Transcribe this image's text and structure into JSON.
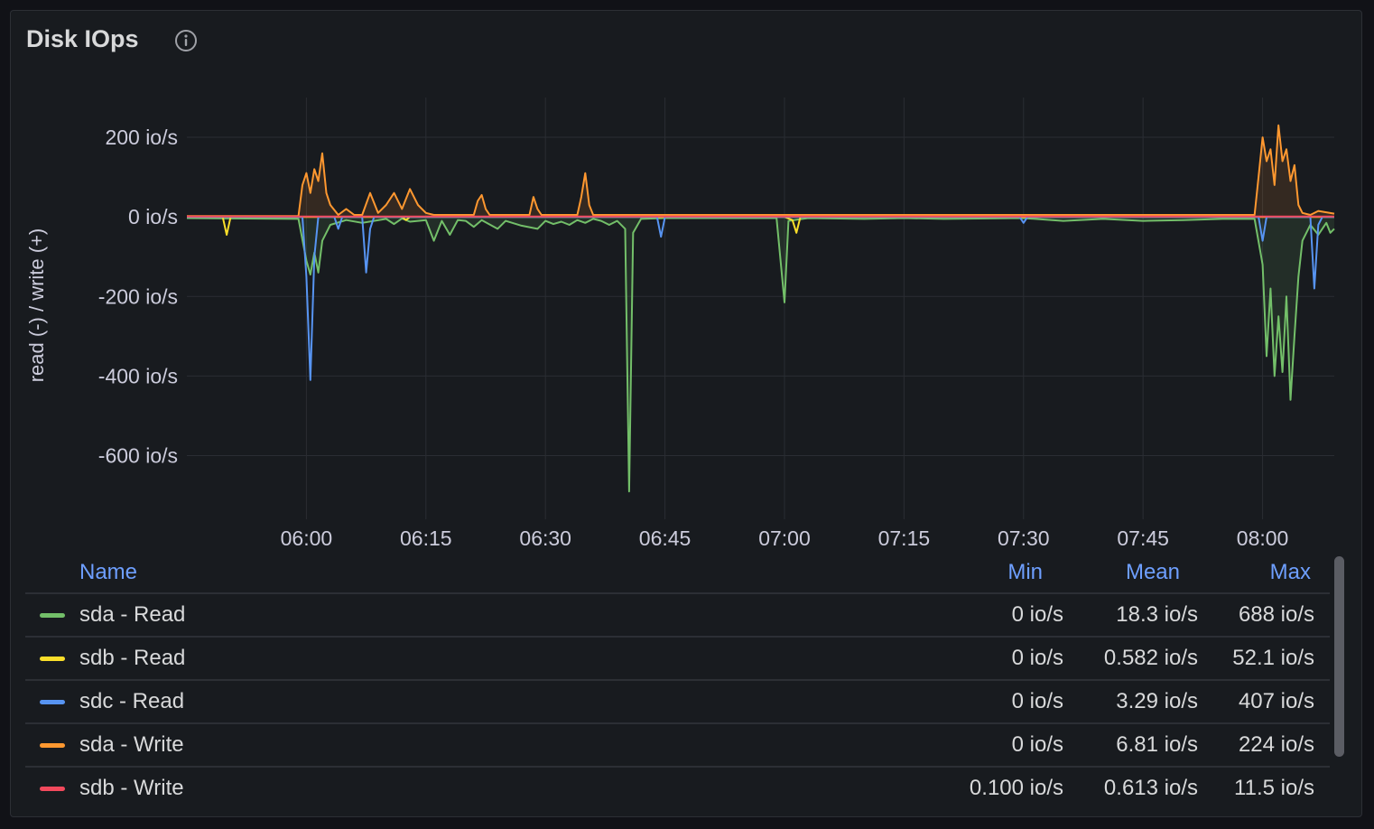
{
  "panel": {
    "title": "Disk IOps"
  },
  "icons": {
    "info": "info-circle-icon"
  },
  "chart_data": {
    "type": "line",
    "ylabel": "read (-) / write (+)",
    "yticks": [
      "200 io/s",
      "0 io/s",
      "-200 io/s",
      "-400 io/s",
      "-600 io/s"
    ],
    "ytick_values": [
      200,
      0,
      -200,
      -400,
      -600
    ],
    "xticks": [
      "06:00",
      "06:15",
      "06:30",
      "06:45",
      "07:00",
      "07:15",
      "07:30",
      "07:45",
      "08:00"
    ],
    "xtick_values": [
      360,
      375,
      390,
      405,
      420,
      435,
      450,
      465,
      480
    ],
    "xlim": [
      345,
      489
    ],
    "ylim": [
      -760,
      300
    ],
    "grid": true,
    "series": [
      {
        "name": "sda - Read",
        "color": "#73bf69",
        "fill": true,
        "points": [
          [
            345,
            -3
          ],
          [
            359,
            -5
          ],
          [
            360,
            -110
          ],
          [
            360.5,
            -145
          ],
          [
            361,
            -90
          ],
          [
            361.5,
            -140
          ],
          [
            362,
            -60
          ],
          [
            363,
            -20
          ],
          [
            365,
            -8
          ],
          [
            367,
            -15
          ],
          [
            370,
            -5
          ],
          [
            371,
            -18
          ],
          [
            372,
            -4
          ],
          [
            373,
            -12
          ],
          [
            375,
            -8
          ],
          [
            376,
            -60
          ],
          [
            377,
            -10
          ],
          [
            378,
            -45
          ],
          [
            379,
            -8
          ],
          [
            380,
            -10
          ],
          [
            381,
            -25
          ],
          [
            382,
            -8
          ],
          [
            384,
            -30
          ],
          [
            385,
            -10
          ],
          [
            387,
            -22
          ],
          [
            389,
            -30
          ],
          [
            390,
            -10
          ],
          [
            391,
            -18
          ],
          [
            392,
            -12
          ],
          [
            393,
            -20
          ],
          [
            394,
            -8
          ],
          [
            395,
            -15
          ],
          [
            396,
            -5
          ],
          [
            397,
            -10
          ],
          [
            398,
            -20
          ],
          [
            399,
            -10
          ],
          [
            400,
            -30
          ],
          [
            400.5,
            -690
          ],
          [
            401,
            -40
          ],
          [
            402,
            -5
          ],
          [
            405,
            -3
          ],
          [
            419,
            -3
          ],
          [
            420,
            -215
          ],
          [
            420.5,
            -10
          ],
          [
            423,
            -3
          ],
          [
            430,
            -5
          ],
          [
            435,
            -3
          ],
          [
            440,
            -5
          ],
          [
            450,
            -3
          ],
          [
            455,
            -10
          ],
          [
            460,
            -5
          ],
          [
            465,
            -10
          ],
          [
            470,
            -8
          ],
          [
            475,
            -5
          ],
          [
            479,
            -5
          ],
          [
            480,
            -120
          ],
          [
            480.5,
            -350
          ],
          [
            481,
            -180
          ],
          [
            481.5,
            -400
          ],
          [
            482,
            -250
          ],
          [
            482.5,
            -390
          ],
          [
            483,
            -200
          ],
          [
            483.5,
            -460
          ],
          [
            484,
            -300
          ],
          [
            484.5,
            -150
          ],
          [
            485,
            -60
          ],
          [
            486,
            -20
          ],
          [
            487,
            -45
          ],
          [
            488,
            -15
          ],
          [
            488.5,
            -40
          ],
          [
            489,
            -30
          ]
        ]
      },
      {
        "name": "sdb - Read",
        "color": "#fade2a",
        "fill": false,
        "points": [
          [
            345,
            0
          ],
          [
            349.5,
            0
          ],
          [
            350,
            -45
          ],
          [
            350.5,
            0
          ],
          [
            372,
            0
          ],
          [
            372.5,
            -8
          ],
          [
            373,
            0
          ],
          [
            420,
            0
          ],
          [
            421,
            -8
          ],
          [
            421.5,
            -40
          ],
          [
            422,
            0
          ],
          [
            489,
            0
          ]
        ]
      },
      {
        "name": "sdc - Read",
        "color": "#5794f2",
        "fill": false,
        "points": [
          [
            345,
            0
          ],
          [
            359.5,
            0
          ],
          [
            360,
            -150
          ],
          [
            360.5,
            -410
          ],
          [
            361,
            -100
          ],
          [
            361.5,
            0
          ],
          [
            363.5,
            0
          ],
          [
            364,
            -30
          ],
          [
            364.5,
            0
          ],
          [
            367,
            0
          ],
          [
            367.5,
            -140
          ],
          [
            368,
            -30
          ],
          [
            368.5,
            0
          ],
          [
            404,
            0
          ],
          [
            404.5,
            -50
          ],
          [
            405,
            0
          ],
          [
            449.5,
            0
          ],
          [
            450,
            -15
          ],
          [
            450.5,
            0
          ],
          [
            479.5,
            0
          ],
          [
            480,
            -60
          ],
          [
            480.5,
            0
          ],
          [
            486,
            0
          ],
          [
            486.5,
            -180
          ],
          [
            487,
            -20
          ],
          [
            487.5,
            0
          ],
          [
            489,
            0
          ]
        ]
      },
      {
        "name": "sda - Write",
        "color": "#ff9830",
        "fill": true,
        "points": [
          [
            345,
            2
          ],
          [
            359,
            2
          ],
          [
            359.5,
            80
          ],
          [
            360,
            110
          ],
          [
            360.5,
            60
          ],
          [
            361,
            120
          ],
          [
            361.5,
            90
          ],
          [
            362,
            160
          ],
          [
            362.5,
            60
          ],
          [
            363,
            30
          ],
          [
            364,
            5
          ],
          [
            365,
            20
          ],
          [
            366,
            5
          ],
          [
            367,
            5
          ],
          [
            368,
            60
          ],
          [
            369,
            10
          ],
          [
            370,
            30
          ],
          [
            371,
            60
          ],
          [
            372,
            20
          ],
          [
            373,
            70
          ],
          [
            374,
            30
          ],
          [
            375,
            10
          ],
          [
            376,
            5
          ],
          [
            381,
            5
          ],
          [
            381.5,
            40
          ],
          [
            382,
            55
          ],
          [
            382.5,
            20
          ],
          [
            383,
            5
          ],
          [
            388,
            5
          ],
          [
            388.5,
            50
          ],
          [
            389,
            20
          ],
          [
            389.5,
            5
          ],
          [
            394,
            5
          ],
          [
            394.5,
            50
          ],
          [
            395,
            110
          ],
          [
            395.5,
            30
          ],
          [
            396,
            5
          ],
          [
            479,
            5
          ],
          [
            479.5,
            100
          ],
          [
            480,
            200
          ],
          [
            480.5,
            140
          ],
          [
            481,
            170
          ],
          [
            481.5,
            80
          ],
          [
            482,
            230
          ],
          [
            482.5,
            140
          ],
          [
            483,
            170
          ],
          [
            483.5,
            90
          ],
          [
            484,
            130
          ],
          [
            484.5,
            30
          ],
          [
            485,
            10
          ],
          [
            486,
            5
          ],
          [
            487,
            15
          ],
          [
            489,
            8
          ]
        ]
      },
      {
        "name": "sdb - Write",
        "color": "#f2495c",
        "fill": false,
        "points": [
          [
            345,
            1
          ],
          [
            489,
            1
          ]
        ]
      }
    ]
  },
  "legend": {
    "headers": {
      "name": "Name",
      "min": "Min",
      "mean": "Mean",
      "max": "Max"
    },
    "rows": [
      {
        "name": "sda - Read",
        "color": "#73bf69",
        "min": "0 io/s",
        "mean": "18.3 io/s",
        "max": "688 io/s"
      },
      {
        "name": "sdb - Read",
        "color": "#fade2a",
        "min": "0 io/s",
        "mean": "0.582 io/s",
        "max": "52.1 io/s"
      },
      {
        "name": "sdc - Read",
        "color": "#5794f2",
        "min": "0 io/s",
        "mean": "3.29 io/s",
        "max": "407 io/s"
      },
      {
        "name": "sda - Write",
        "color": "#ff9830",
        "min": "0 io/s",
        "mean": "6.81 io/s",
        "max": "224 io/s"
      },
      {
        "name": "sdb - Write",
        "color": "#f2495c",
        "min": "0.100 io/s",
        "mean": "0.613 io/s",
        "max": "11.5 io/s"
      }
    ]
  }
}
